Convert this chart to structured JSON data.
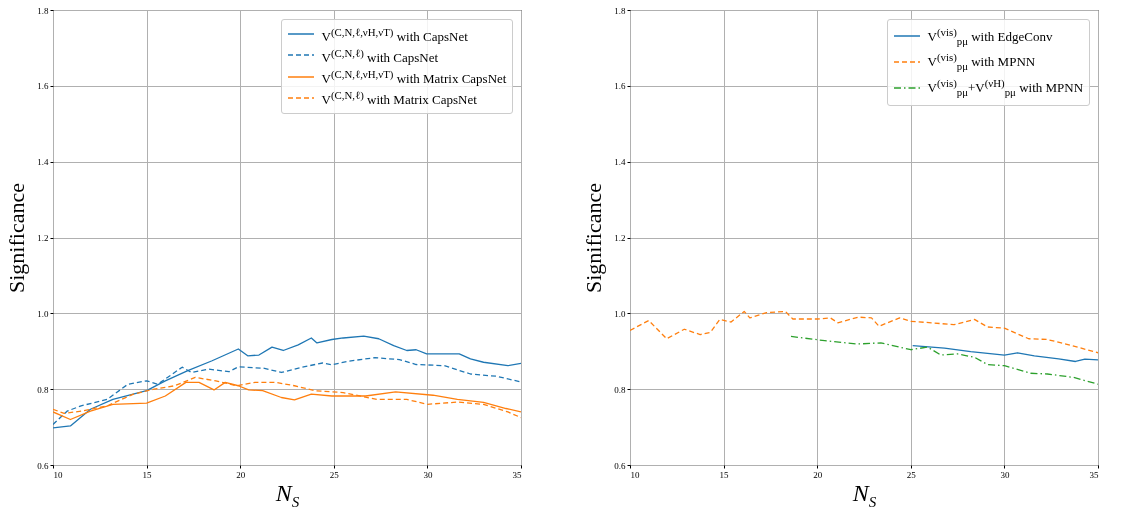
{
  "chart_data": [
    {
      "type": "line",
      "xlabel": "N$_{S}$",
      "ylabel": "Significance",
      "xlim": [
        10,
        35
      ],
      "ylim": [
        0.6,
        1.8
      ],
      "xticks": [
        10,
        15,
        20,
        25,
        30,
        35
      ],
      "yticks": [
        0.6,
        0.8,
        {
          "value": 1,
          "label": "1.0"
        },
        1.2,
        1.4,
        1.6,
        1.8
      ],
      "grid": true,
      "legend": "top right",
      "series": [
        {
          "name": "V$^{(C,N,ℓ,νH,νT)}$ with CapsNet",
          "color": "#1f77b4",
          "line_style": "solid",
          "x": [
            10,
            10.93,
            12,
            13.2,
            15,
            16,
            17.2,
            18.5,
            19.9,
            20.4,
            21,
            21.7,
            22.3,
            23.1,
            23.8,
            24.1,
            24.9,
            25.5,
            26.6,
            27.4,
            28.2,
            28.9,
            29.4,
            29.96,
            31.7,
            32.3,
            33,
            34.3,
            35
          ],
          "values": [
            0.698,
            0.703,
            0.747,
            0.773,
            0.796,
            0.822,
            0.849,
            0.875,
            0.906,
            0.888,
            0.89,
            0.911,
            0.902,
            0.917,
            0.935,
            0.922,
            0.931,
            0.935,
            0.94,
            0.933,
            0.915,
            0.902,
            0.904,
            0.893,
            0.893,
            0.88,
            0.871,
            0.862,
            0.868
          ]
        },
        {
          "name": "V$^{(C,N,ℓ)}$ with CapsNet",
          "color": "#1f77b4",
          "line_style": "dashed",
          "x": [
            10,
            10.75,
            11.5,
            12.9,
            14,
            15,
            15.6,
            16.9,
            17.4,
            18.3,
            19.4,
            19.9,
            21.3,
            22.2,
            23.3,
            24.4,
            24.9,
            25.8,
            27.2,
            28.5,
            29.4,
            30.9,
            32.3,
            33.7,
            35
          ],
          "values": [
            0.707,
            0.742,
            0.756,
            0.773,
            0.813,
            0.822,
            0.813,
            0.858,
            0.844,
            0.853,
            0.846,
            0.859,
            0.855,
            0.844,
            0.858,
            0.869,
            0.864,
            0.874,
            0.883,
            0.878,
            0.865,
            0.862,
            0.84,
            0.834,
            0.819
          ]
        },
        {
          "name": "V$^{(C,N,ℓ,νH,νT)}$ with Matrix CapsNet",
          "color": "#ff7f0e",
          "line_style": "solid",
          "x": [
            10,
            10.93,
            12,
            13.2,
            15,
            16,
            17.1,
            17.8,
            18.6,
            19.2,
            19.9,
            20.45,
            21.2,
            22.2,
            22.9,
            23.8,
            24.9,
            26.7,
            28.3,
            30.3,
            31.6,
            33,
            34.2,
            35
          ],
          "values": [
            0.74,
            0.72,
            0.742,
            0.76,
            0.763,
            0.782,
            0.818,
            0.818,
            0.798,
            0.818,
            0.809,
            0.798,
            0.796,
            0.778,
            0.772,
            0.787,
            0.782,
            0.782,
            0.793,
            0.784,
            0.773,
            0.765,
            0.749,
            0.74
          ]
        },
        {
          "name": "V$^{(C,N,ℓ)}$ with Matrix CapsNet",
          "color": "#ff7f0e",
          "line_style": "dashed",
          "x": [
            10,
            10.6,
            11.5,
            12.9,
            14.3,
            15.4,
            16.5,
            17.6,
            18.7,
            19.8,
            20.8,
            21.9,
            22.9,
            24,
            25.5,
            27.3,
            28.9,
            30,
            31.6,
            33,
            34.3,
            35
          ],
          "values": [
            0.747,
            0.736,
            0.742,
            0.756,
            0.787,
            0.8,
            0.809,
            0.831,
            0.822,
            0.809,
            0.818,
            0.818,
            0.809,
            0.796,
            0.791,
            0.773,
            0.773,
            0.76,
            0.766,
            0.76,
            0.74,
            0.725
          ]
        }
      ]
    },
    {
      "type": "line",
      "xlabel": "N$_{S}$",
      "ylabel": "Significance",
      "xlim": [
        10,
        35
      ],
      "ylim": [
        0.6,
        1.8
      ],
      "xticks": [
        10,
        15,
        20,
        25,
        30,
        35
      ],
      "yticks": [
        0.6,
        0.8,
        {
          "value": 1,
          "label": "1.0"
        },
        1.2,
        1.4,
        1.6,
        1.8
      ],
      "grid": true,
      "legend": "top right",
      "series": [
        {
          "name": "V$^{(vis)}$$_{pμ}$ with EdgeConv",
          "color": "#1f77b4",
          "line_style": "solid",
          "x": [
            25.1,
            26.8,
            28.2,
            30,
            30.7,
            31.6,
            32.9,
            33.8,
            34.3,
            35
          ],
          "values": [
            0.915,
            0.908,
            0.899,
            0.89,
            0.896,
            0.888,
            0.88,
            0.873,
            0.879,
            0.877
          ]
        },
        {
          "name": "V$^{(vis)}$$_{pμ}$ with MPNN",
          "color": "#ff7f0e",
          "line_style": "dashed",
          "x": [
            10,
            11,
            11.96,
            12.9,
            13.75,
            14.3,
            14.8,
            15.4,
            16.1,
            16.4,
            17.3,
            18.3,
            18.7,
            20,
            20.7,
            21.1,
            22.2,
            22.9,
            23.3,
            24.4,
            25,
            26.1,
            27.3,
            28.4,
            29.1,
            30,
            31.3,
            32.3,
            33.6,
            35
          ],
          "values": [
            0.955,
            0.981,
            0.933,
            0.958,
            0.944,
            0.95,
            0.984,
            0.977,
            1.005,
            0.988,
            1.002,
            1.005,
            0.985,
            0.985,
            0.988,
            0.975,
            0.99,
            0.988,
            0.966,
            0.988,
            0.979,
            0.975,
            0.97,
            0.984,
            0.964,
            0.961,
            0.933,
            0.931,
            0.915,
            0.896
          ]
        },
        {
          "name": "V$^{(vis)}$$_{pμ}$+V$^{(νH)}$$_{pμ}$ with MPNN",
          "color": "#2ca02c",
          "line_style": "dashdot",
          "x": [
            18.6,
            20.4,
            22.1,
            23.4,
            25,
            25.9,
            26.6,
            27.5,
            28.4,
            29.1,
            30,
            31.4,
            32.3,
            33.7,
            35
          ],
          "values": [
            0.939,
            0.928,
            0.919,
            0.922,
            0.904,
            0.911,
            0.89,
            0.893,
            0.884,
            0.865,
            0.862,
            0.842,
            0.84,
            0.831,
            0.813
          ]
        }
      ]
    }
  ]
}
